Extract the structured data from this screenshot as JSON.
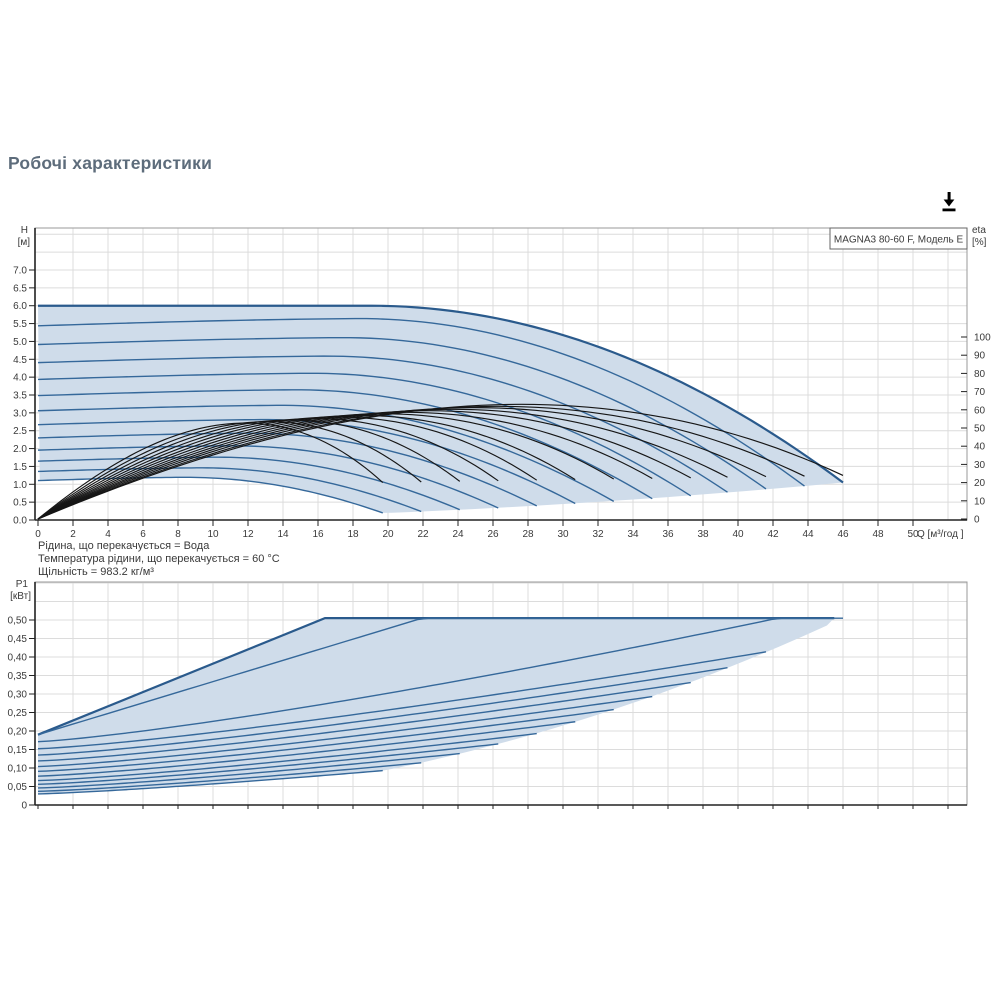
{
  "page": {
    "title": "Робочі характеристики",
    "title_color": "#5d6c7b"
  },
  "toolbar": {
    "download_label": "download"
  },
  "hq_chart": {
    "label_box": "MAGNA3 80-60 F, Модель E",
    "y_axis_name": "H",
    "y_axis_unit": "[м]",
    "x_axis_name": "Q",
    "x_axis_unit": "[м³/год ]",
    "eta_axis_name": "eta",
    "eta_axis_unit": "[%]",
    "h_ticks": [
      "7.0",
      "6.5",
      "6.0",
      "5.5",
      "5.0",
      "4.5",
      "4.0",
      "3.5",
      "3.0",
      "2.5",
      "2.0",
      "1.5",
      "1.0",
      "0.5",
      "0.0"
    ],
    "q_ticks": [
      "0",
      "2",
      "4",
      "6",
      "8",
      "10",
      "12",
      "14",
      "16",
      "18",
      "20",
      "22",
      "24",
      "26",
      "28",
      "30",
      "32",
      "34",
      "36",
      "38",
      "40",
      "42",
      "44",
      "46",
      "48",
      "50"
    ],
    "eta_ticks": [
      "100",
      "90",
      "80",
      "70",
      "60",
      "50",
      "40",
      "30",
      "20",
      "10",
      "0"
    ]
  },
  "notes": {
    "line1": "Рідина, що перекачується = Вода",
    "line2": "Температура рідини, що перекачується = 60 °C",
    "line3": "Щільність = 983.2 кг/м³"
  },
  "p1_chart": {
    "y_axis_name": "P1",
    "y_axis_unit": "[кВт]",
    "p_ticks": [
      "0,50",
      "0,45",
      "0,40",
      "0,35",
      "0,30",
      "0,25",
      "0,20",
      "0,15",
      "0,10",
      "0,05",
      "0"
    ]
  },
  "colors": {
    "fill": "#cfdcea",
    "curve": "#35689a",
    "curve_bold": "#2a5a8c",
    "eta_curve": "#161616",
    "grid": "#dcdcdc",
    "frame": "#9a9a9a",
    "axis": "#222222",
    "tick_text": "#3a3a3a"
  },
  "chart_data": [
    {
      "type": "line",
      "title": "MAGNA3 80-60 F, Модель E",
      "xlabel": "Q [м³/год]",
      "ylabel": "H [м]",
      "y2label": "eta [%]",
      "xlim": [
        0,
        50
      ],
      "ylim": [
        0,
        7
      ],
      "y2lim": [
        0,
        100
      ],
      "grid": true,
      "shape": {
        "h_max": 6.0,
        "knee_q": 19.0,
        "drop_coef": 0.00679,
        "hump": 0.22,
        "eta_peak_at_t": 0.6,
        "eta_end_fraction": 0.38
      },
      "curves": [
        {
          "r": 1.0,
          "h0": 6.0,
          "q_end": 46.0,
          "h_end": 1.05,
          "eta_peak": 63.0
        },
        {
          "r": 0.952,
          "h0": 5.44,
          "q_end": 43.8,
          "h_end": 0.95,
          "eta_peak": 61.9
        },
        {
          "r": 0.905,
          "h0": 4.91,
          "q_end": 41.6,
          "h_end": 0.86,
          "eta_peak": 61.2
        },
        {
          "r": 0.857,
          "h0": 4.41,
          "q_end": 39.4,
          "h_end": 0.77,
          "eta_peak": 60.3
        },
        {
          "r": 0.81,
          "h0": 3.94,
          "q_end": 37.3,
          "h_end": 0.69,
          "eta_peak": 59.5
        },
        {
          "r": 0.762,
          "h0": 3.48,
          "q_end": 35.1,
          "h_end": 0.61,
          "eta_peak": 58.6
        },
        {
          "r": 0.714,
          "h0": 3.06,
          "q_end": 32.9,
          "h_end": 0.54,
          "eta_peak": 57.8
        },
        {
          "r": 0.667,
          "h0": 2.67,
          "q_end": 30.7,
          "h_end": 0.47,
          "eta_peak": 56.9
        },
        {
          "r": 0.619,
          "h0": 2.3,
          "q_end": 28.5,
          "h_end": 0.4,
          "eta_peak": 56.1
        },
        {
          "r": 0.571,
          "h0": 1.96,
          "q_end": 26.3,
          "h_end": 0.34,
          "eta_peak": 55.2
        },
        {
          "r": 0.524,
          "h0": 1.65,
          "q_end": 24.1,
          "h_end": 0.29,
          "eta_peak": 54.4
        },
        {
          "r": 0.476,
          "h0": 1.36,
          "q_end": 21.9,
          "h_end": 0.24,
          "eta_peak": 53.5
        },
        {
          "r": 0.429,
          "h0": 1.1,
          "q_end": 19.7,
          "h_end": 0.19,
          "eta_peak": 52.7
        }
      ]
    },
    {
      "type": "line",
      "ylabel": "P1 [кВт]",
      "xlim": [
        0,
        53
      ],
      "ylim": [
        0,
        0.6
      ],
      "grid": true,
      "power_limit_kW": 0.505,
      "top_edge": {
        "p_start": 0.19,
        "corner_q": 16.4,
        "flat_p": 0.505,
        "flat_end_q": 45.5
      },
      "curves": [
        {
          "r": 1.0,
          "p0": 0.19,
          "q_end": 46.0,
          "p_end_nat": 0.85,
          "p_exp": 1.0
        },
        {
          "r": 0.952,
          "p0": 0.171,
          "q_end": 43.8,
          "p_end_nat": 0.52,
          "p_exp": 1.25
        },
        {
          "r": 0.905,
          "p0": 0.152,
          "q_end": 41.6,
          "p_end_nat": 0.414,
          "p_exp": 1.25
        },
        {
          "r": 0.857,
          "p0": 0.135,
          "q_end": 39.4,
          "p_end_nat": 0.371,
          "p_exp": 1.25
        },
        {
          "r": 0.81,
          "p0": 0.119,
          "q_end": 37.3,
          "p_end_nat": 0.331,
          "p_exp": 1.25
        },
        {
          "r": 0.762,
          "p0": 0.104,
          "q_end": 35.1,
          "p_end_nat": 0.293,
          "p_exp": 1.25
        },
        {
          "r": 0.714,
          "p0": 0.091,
          "q_end": 32.9,
          "p_end_nat": 0.258,
          "p_exp": 1.25
        },
        {
          "r": 0.667,
          "p0": 0.078,
          "q_end": 30.7,
          "p_end_nat": 0.225,
          "p_exp": 1.25
        },
        {
          "r": 0.619,
          "p0": 0.066,
          "q_end": 28.5,
          "p_end_nat": 0.193,
          "p_exp": 1.25
        },
        {
          "r": 0.571,
          "p0": 0.056,
          "q_end": 26.3,
          "p_end_nat": 0.165,
          "p_exp": 1.25
        },
        {
          "r": 0.524,
          "p0": 0.046,
          "q_end": 24.1,
          "p_end_nat": 0.139,
          "p_exp": 1.25
        },
        {
          "r": 0.476,
          "p0": 0.037,
          "q_end": 21.9,
          "p_end_nat": 0.114,
          "p_exp": 1.25
        },
        {
          "r": 0.429,
          "p0": 0.03,
          "q_end": 19.7,
          "p_end_nat": 0.093,
          "p_exp": 1.25
        }
      ]
    }
  ]
}
